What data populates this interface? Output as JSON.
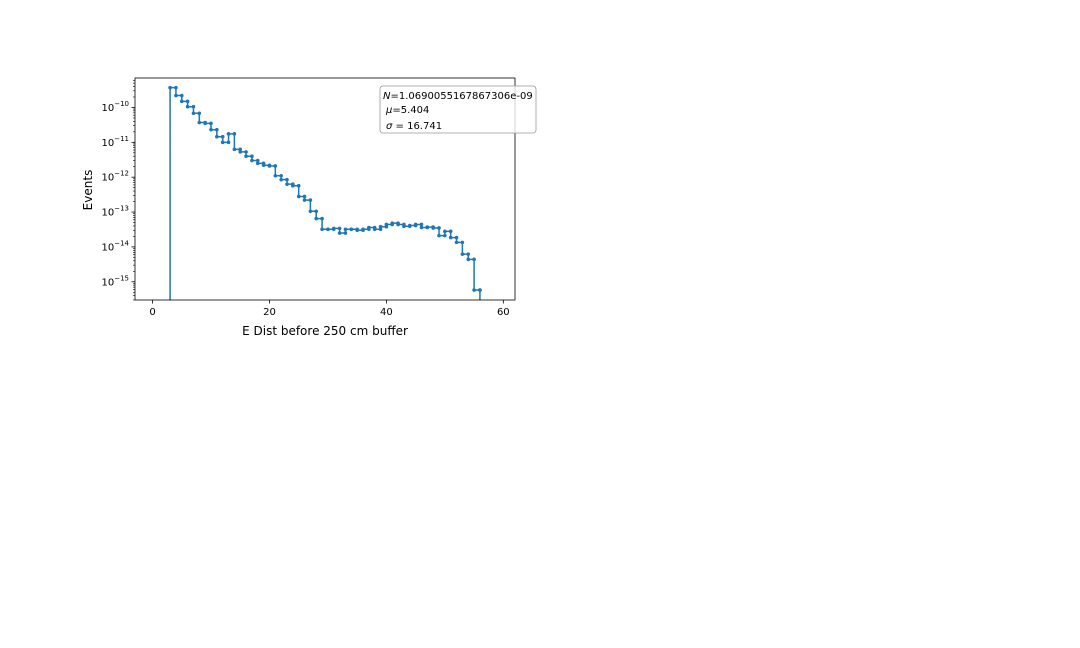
{
  "chart_data": {
    "type": "line",
    "drawstyle": "steps-post",
    "title": "",
    "xlabel": "E Dist before 250 cm buffer",
    "ylabel": "Events",
    "xlim": [
      -3,
      62
    ],
    "ylim": [
      3e-16,
      7e-10
    ],
    "yscale": "log",
    "grid": false,
    "color": "#1f77b4",
    "x_ticks": [
      0,
      20,
      40,
      60
    ],
    "y_ticks": [
      {
        "value": 1e-10,
        "mantissa": "10",
        "exponent": "−10"
      },
      {
        "value": 1e-11,
        "mantissa": "10",
        "exponent": "−11"
      },
      {
        "value": 1e-12,
        "mantissa": "10",
        "exponent": "−12"
      },
      {
        "value": 1e-13,
        "mantissa": "10",
        "exponent": "−13"
      },
      {
        "value": 1e-14,
        "mantissa": "10",
        "exponent": "−14"
      },
      {
        "value": 1e-15,
        "mantissa": "10",
        "exponent": "−15"
      }
    ],
    "stats_box": {
      "placement": "top-right",
      "n_label": "N",
      "n_value": "=1.0690055167867306e-09",
      "mu_label": "μ",
      "mu_value": "=5.404",
      "sigma_label": "σ",
      "sigma_value": " = 16.741"
    },
    "series": [
      {
        "x": [
          3,
          4,
          5,
          6,
          7,
          8,
          9,
          10,
          11,
          12,
          13,
          14,
          15,
          16,
          17,
          18,
          19,
          20,
          21,
          22,
          23,
          24,
          25,
          26,
          27,
          28,
          29,
          30,
          31,
          32,
          33,
          34,
          35,
          36,
          37,
          38,
          39,
          40,
          41,
          42,
          43,
          44,
          45,
          46,
          47,
          48,
          49,
          50,
          51,
          52,
          53,
          54,
          55,
          56
        ],
        "y": [
          3.7e-10,
          2.2e-10,
          1.5e-10,
          1.05e-10,
          6.8e-11,
          3.7e-11,
          3.5e-11,
          2.3e-11,
          1.45e-11,
          1e-11,
          1.75e-11,
          6.3e-12,
          5.3e-12,
          4e-12,
          3e-12,
          2.5e-12,
          2.2e-12,
          2.1e-12,
          1.1e-12,
          8.5e-13,
          6.3e-13,
          5.7e-13,
          2.8e-13,
          2.2e-13,
          1.05e-13,
          6.5e-14,
          3.2e-14,
          3.2e-14,
          3.4e-14,
          2.5e-14,
          3.2e-14,
          3.2e-14,
          3e-14,
          3.2e-14,
          3.6e-14,
          3.2e-14,
          3.8e-14,
          4.4e-14,
          4.8e-14,
          4.4e-14,
          3.9e-14,
          4.1e-14,
          4.4e-14,
          3.6e-14,
          3.7e-14,
          3.5e-14,
          2.1e-14,
          2.8e-14,
          1.85e-14,
          1.35e-14,
          6.2e-15,
          4.4e-15,
          5.8e-16,
          5.8e-16
        ]
      }
    ]
  }
}
